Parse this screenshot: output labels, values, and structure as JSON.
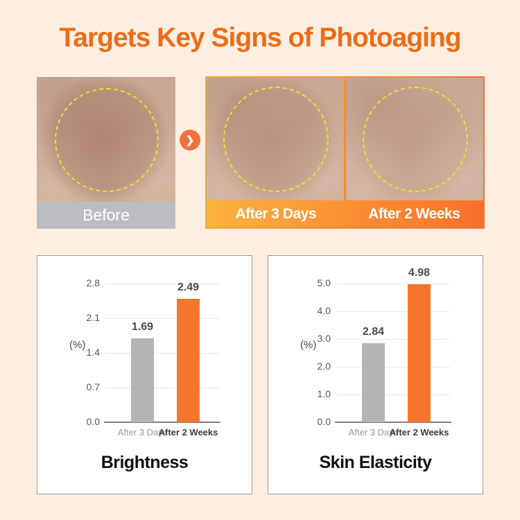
{
  "page": {
    "title": "Targets Key Signs of Photoaging"
  },
  "colors": {
    "background": "#FCEFE2",
    "title_orange": "#EC6C17",
    "before_label_gray": "#BCBDC0",
    "after_gradient_start": "#FDB23E",
    "after_gradient_end": "#F8702C",
    "arrow_orange": "#F2703E",
    "bar_gray": "#B4B4B6",
    "bar_orange": "#F5762B",
    "dashed_circle_yellow": "#EFE02F"
  },
  "comparison": {
    "before": {
      "label": "Before"
    },
    "arrow_glyph": "❯",
    "after_labels": [
      "After 3 Days",
      "After 2 Weeks"
    ]
  },
  "chart_data": [
    {
      "type": "bar",
      "title": "Brightness",
      "ylabel": "(%)",
      "categories": [
        "After 3 Days",
        "After 2 Weeks"
      ],
      "values": [
        1.69,
        2.49
      ],
      "value_labels": [
        "1.69",
        "2.49"
      ],
      "yticks": [
        "2.8",
        "2.1",
        "1.4",
        "0.7",
        "0.0"
      ],
      "ylim": [
        0,
        2.8
      ],
      "bar_colors": [
        "#B4B4B6",
        "#F5762B"
      ],
      "grid": true,
      "legend": "none"
    },
    {
      "type": "bar",
      "title": "Skin Elasticity",
      "ylabel": "(%)",
      "categories": [
        "After 3 Days",
        "After 2 Weeks"
      ],
      "values": [
        2.84,
        4.98
      ],
      "value_labels": [
        "2.84",
        "4.98"
      ],
      "yticks": [
        "5.0",
        "4.0",
        "3.0",
        "2.0",
        "1.0",
        "0.0"
      ],
      "ylim": [
        0,
        5.0
      ],
      "bar_colors": [
        "#B4B4B6",
        "#F5762B"
      ],
      "grid": true,
      "legend": "none"
    }
  ]
}
